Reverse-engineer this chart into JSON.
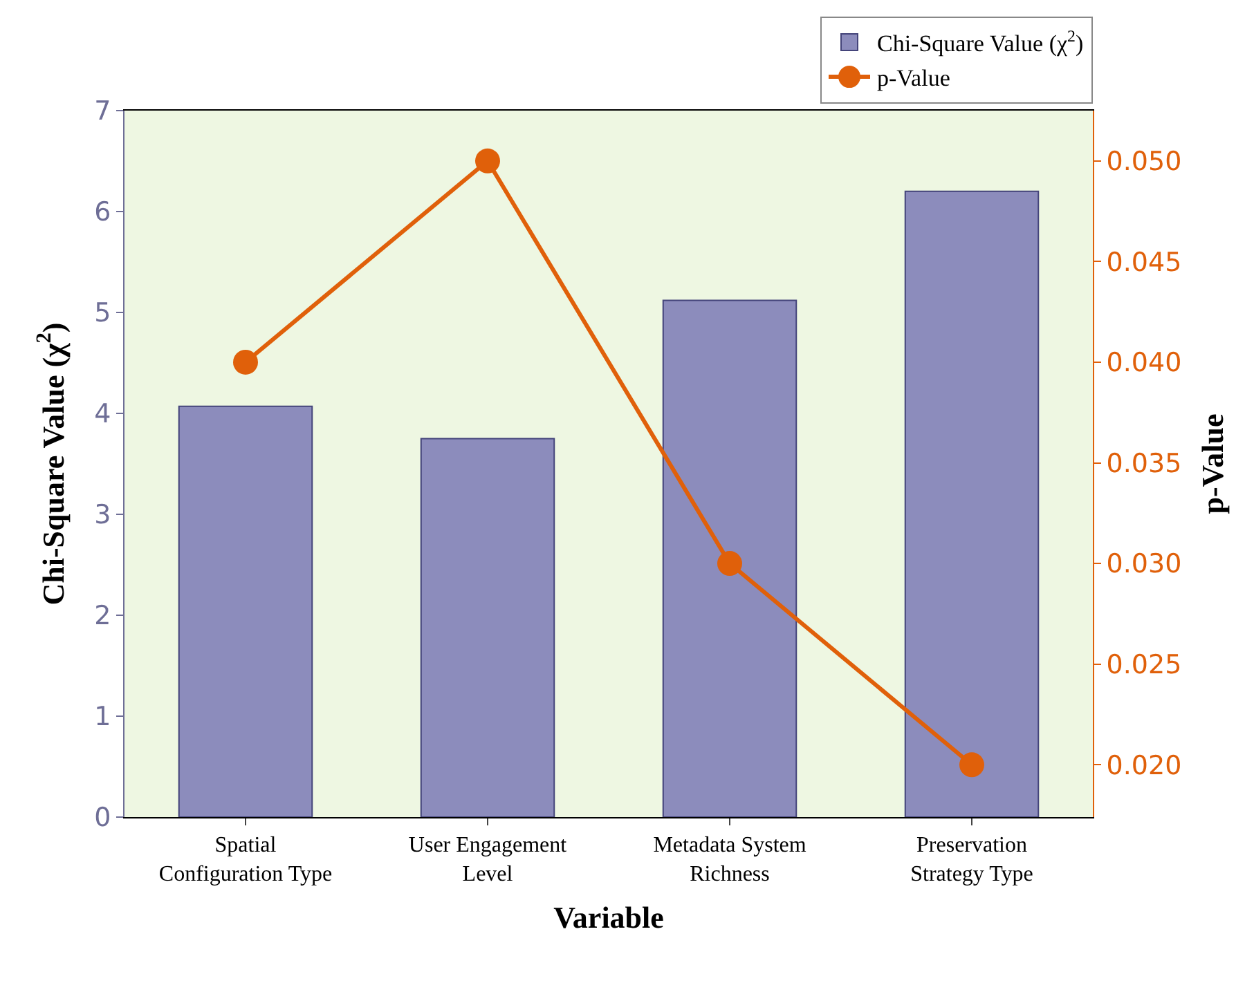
{
  "chart_data": {
    "type": "bar",
    "xlabel": "Variable",
    "ylabel": "Chi-Square Value (χ$^{2}$)",
    "y2label": "p-Value",
    "categories": [
      "Spatial Configuration Type",
      "User Engagement Level",
      "Metadata System Richness",
      "Preservation Strategy Type"
    ],
    "series": [
      {
        "name": "Chi-Square Value (χ$^{2}$)",
        "color": "#8c8cbc",
        "values": [
          4.07,
          3.75,
          5.12,
          6.2
        ]
      },
      {
        "name": "p-Value",
        "type": "line",
        "axis": "y2",
        "color": "#e0600a",
        "marker": "circle",
        "values": [
          0.04,
          0.05,
          0.03,
          0.02
        ]
      }
    ],
    "ylim": [
      0,
      7
    ],
    "yticks": [
      0,
      1,
      2,
      3,
      4,
      5,
      6,
      7
    ],
    "y2lim": [
      0.0174,
      0.0525
    ],
    "y2ticks": [
      {
        "value": 0.02,
        "label": "0.020"
      },
      {
        "value": 0.025,
        "label": "0.025"
      },
      {
        "value": 0.03,
        "label": "0.030"
      },
      {
        "value": 0.035,
        "label": "0.035"
      },
      {
        "value": 0.04,
        "label": "0.040"
      },
      {
        "value": 0.045,
        "label": "0.045"
      },
      {
        "value": 0.05,
        "label": "0.050"
      }
    ],
    "grid": false,
    "legend": "top right"
  }
}
